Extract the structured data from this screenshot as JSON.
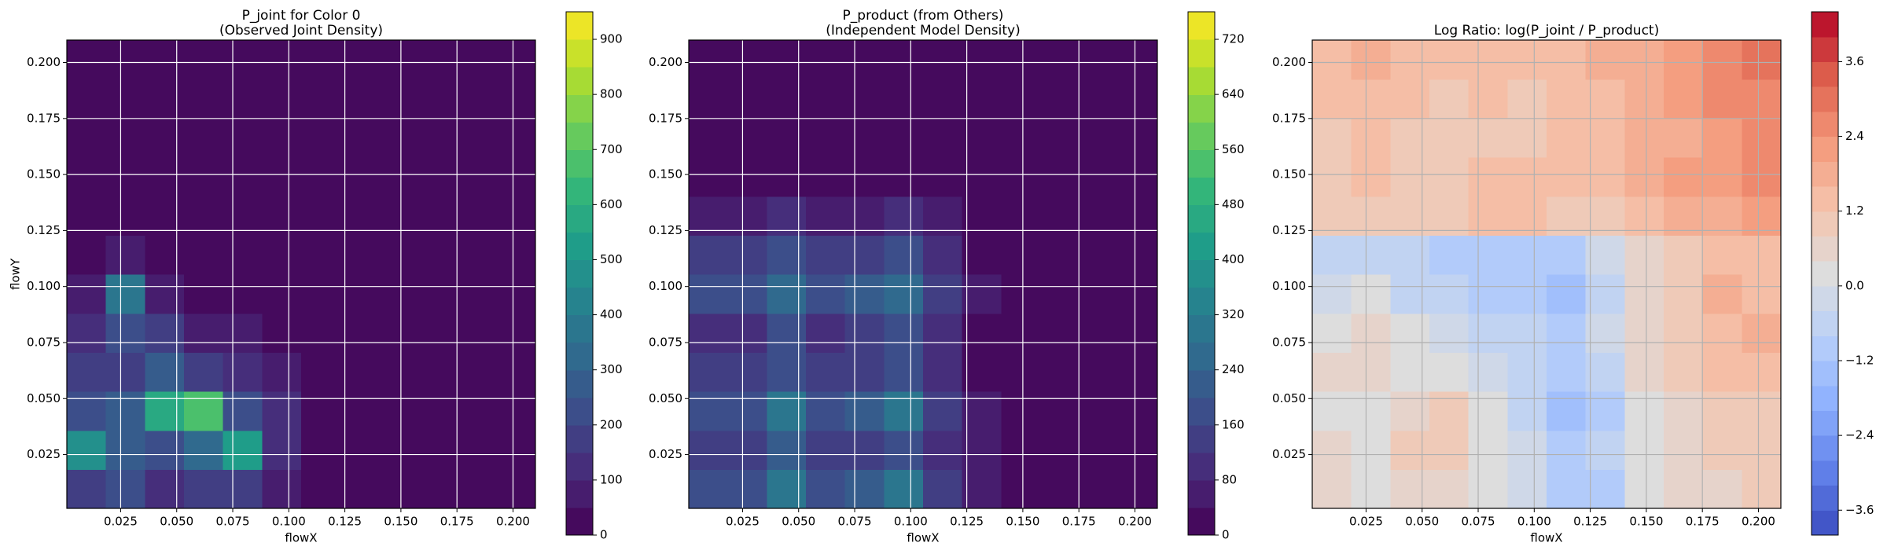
{
  "chart_data": [
    {
      "type": "contour",
      "title": [
        "P_joint for Color 0",
        "(Observed Joint Density)"
      ],
      "xlabel": "flowX",
      "ylabel": "flowY",
      "xlim": [
        0.001,
        0.21
      ],
      "ylim": [
        0.001,
        0.21
      ],
      "xticks": [
        0.025,
        {
          "value": 0.05,
          "label": "0.050"
        },
        0.075,
        {
          "value": 0.1,
          "label": "0.100"
        },
        0.125,
        {
          "value": 0.15,
          "label": "0.150"
        },
        0.175,
        {
          "value": 0.2,
          "label": "0.200"
        }
      ],
      "yticks": [
        0.025,
        {
          "value": 0.05,
          "label": "0.050"
        },
        0.075,
        {
          "value": 0.1,
          "label": "0.100"
        },
        0.125,
        {
          "value": 0.15,
          "label": "0.150"
        },
        0.175,
        {
          "value": 0.2,
          "label": "0.200"
        }
      ],
      "grid": true,
      "grid_color": "#ffffff",
      "colormap": "viridis",
      "zlim": [
        0,
        950
      ],
      "levels": 19,
      "zticks": [
        0,
        100,
        200,
        300,
        400,
        500,
        600,
        700,
        800,
        900
      ],
      "z": [
        [
          150,
          200,
          120,
          150,
          180,
          80,
          0,
          0,
          0,
          0,
          0,
          0
        ],
        [
          450,
          250,
          200,
          300,
          500,
          120,
          0,
          0,
          0,
          0,
          0,
          0
        ],
        [
          200,
          250,
          550,
          650,
          200,
          100,
          0,
          0,
          0,
          0,
          0,
          0
        ],
        [
          150,
          150,
          250,
          150,
          100,
          80,
          0,
          0,
          0,
          0,
          0,
          0
        ],
        [
          100,
          200,
          150,
          80,
          50,
          30,
          0,
          0,
          0,
          0,
          0,
          0
        ],
        [
          60,
          350,
          80,
          40,
          20,
          10,
          0,
          0,
          0,
          0,
          0,
          0
        ],
        [
          20,
          60,
          30,
          10,
          0,
          0,
          0,
          0,
          0,
          0,
          0,
          0
        ],
        [
          0,
          30,
          20,
          0,
          0,
          20,
          0,
          0,
          0,
          0,
          0,
          0
        ],
        [
          0,
          0,
          30,
          0,
          0,
          0,
          0,
          0,
          0,
          0,
          0,
          0
        ],
        [
          0,
          0,
          0,
          0,
          0,
          0,
          0,
          0,
          0,
          0,
          0,
          0
        ],
        [
          0,
          0,
          0,
          0,
          0,
          0,
          0,
          0,
          0,
          0,
          0,
          0
        ],
        [
          0,
          0,
          0,
          0,
          0,
          0,
          0,
          0,
          0,
          0,
          0,
          0
        ]
      ]
    },
    {
      "type": "contour",
      "title": [
        "P_product (from Others)",
        "(Independent Model Density)"
      ],
      "xlabel": "flowX",
      "xlim": [
        0.001,
        0.21
      ],
      "ylim": [
        0.001,
        0.21
      ],
      "xticks": [
        0.025,
        {
          "value": 0.05,
          "label": "0.050"
        },
        0.075,
        {
          "value": 0.1,
          "label": "0.100"
        },
        0.125,
        {
          "value": 0.15,
          "label": "0.150"
        },
        0.175,
        {
          "value": 0.2,
          "label": "0.200"
        }
      ],
      "yticks": [
        0.025,
        {
          "value": 0.05,
          "label": "0.050"
        },
        0.075,
        {
          "value": 0.1,
          "label": "0.100"
        },
        0.125,
        {
          "value": 0.15,
          "label": "0.150"
        },
        0.175,
        {
          "value": 0.2,
          "label": "0.200"
        }
      ],
      "grid": true,
      "grid_color": "#ffffff",
      "colormap": "viridis",
      "zlim": [
        0,
        760
      ],
      "levels": 19,
      "zticks": [
        0,
        80,
        160,
        240,
        320,
        400,
        480,
        560,
        640,
        720
      ],
      "z": [
        [
          192,
          192,
          307,
          192,
          230,
          288,
          154,
          58,
          19,
          0,
          0,
          0
        ],
        [
          132,
          132,
          211,
          132,
          158,
          198,
          106,
          40,
          13,
          0,
          0,
          0
        ],
        [
          192,
          192,
          307,
          192,
          230,
          288,
          154,
          58,
          19,
          0,
          0,
          0
        ],
        [
          120,
          120,
          192,
          120,
          144,
          180,
          96,
          36,
          12,
          0,
          0,
          0
        ],
        [
          108,
          108,
          173,
          108,
          130,
          162,
          86,
          32,
          11,
          0,
          0,
          0
        ],
        [
          168,
          168,
          269,
          168,
          202,
          252,
          134,
          50,
          17,
          0,
          0,
          0
        ],
        [
          120,
          120,
          192,
          120,
          144,
          180,
          96,
          36,
          12,
          0,
          0,
          0
        ],
        [
          60,
          60,
          96,
          60,
          72,
          90,
          48,
          18,
          6,
          0,
          0,
          0
        ],
        [
          12,
          12,
          19,
          12,
          14,
          18,
          10,
          4,
          1,
          0,
          0,
          0
        ],
        [
          0,
          0,
          0,
          0,
          0,
          0,
          0,
          0,
          0,
          0,
          0,
          0
        ],
        [
          0,
          0,
          0,
          0,
          0,
          0,
          0,
          0,
          0,
          0,
          0,
          0
        ],
        [
          0,
          0,
          0,
          0,
          0,
          0,
          0,
          0,
          0,
          0,
          0,
          0
        ]
      ]
    },
    {
      "type": "contour",
      "title": [
        "Log Ratio: log(P_joint / P_product)"
      ],
      "xlabel": "flowX",
      "xlim": [
        0.001,
        0.21
      ],
      "ylim": [
        0.001,
        0.21
      ],
      "xticks": [
        0.025,
        {
          "value": 0.05,
          "label": "0.050"
        },
        0.075,
        {
          "value": 0.1,
          "label": "0.100"
        },
        0.125,
        {
          "value": 0.15,
          "label": "0.150"
        },
        0.175,
        {
          "value": 0.2,
          "label": "0.200"
        }
      ],
      "yticks": [
        0.025,
        {
          "value": 0.05,
          "label": "0.050"
        },
        0.075,
        {
          "value": 0.1,
          "label": "0.100"
        },
        0.125,
        {
          "value": 0.15,
          "label": "0.150"
        },
        0.175,
        {
          "value": 0.2,
          "label": "0.200"
        }
      ],
      "grid": true,
      "grid_color": "#b0b0b0",
      "colormap": "coolwarm",
      "zlim": [
        -4.0,
        4.4
      ],
      "levels": 21,
      "zticks": [
        {
          "value": -3.6,
          "label": "−3.6"
        },
        {
          "value": -2.4,
          "label": "−2.4"
        },
        {
          "value": -1.2,
          "label": "−1.2"
        },
        {
          "value": 0,
          "label": "0.0"
        },
        1.2,
        2.4,
        3.6
      ],
      "z": [
        [
          0.6,
          0.3,
          0.4,
          0.6,
          0.2,
          -0.4,
          -1.2,
          -1.0,
          0.0,
          0.4,
          0.6,
          0.8
        ],
        [
          0.4,
          0.2,
          0.8,
          1.0,
          0.3,
          -0.3,
          -1.0,
          -0.8,
          0.2,
          0.6,
          0.8,
          1.0
        ],
        [
          0.2,
          0.0,
          0.6,
          0.8,
          0.0,
          -0.6,
          -1.4,
          -1.0,
          0.0,
          0.4,
          0.8,
          1.0
        ],
        [
          0.4,
          0.6,
          0.2,
          0.0,
          -0.4,
          -0.8,
          -1.2,
          -0.6,
          0.4,
          0.8,
          1.2,
          1.4
        ],
        [
          0.2,
          0.4,
          0.0,
          -0.2,
          -0.6,
          -0.8,
          -1.0,
          -0.4,
          0.6,
          1.0,
          1.4,
          1.6
        ],
        [
          -0.4,
          0.0,
          -0.6,
          -0.8,
          -1.0,
          -1.2,
          -1.4,
          -0.6,
          0.6,
          1.0,
          1.6,
          1.4
        ],
        [
          -0.6,
          -0.8,
          -0.8,
          -1.0,
          -1.2,
          -1.0,
          -1.2,
          -0.4,
          0.4,
          0.8,
          1.2,
          1.2
        ],
        [
          0.8,
          1.0,
          0.8,
          1.0,
          1.2,
          1.2,
          1.0,
          1.0,
          1.4,
          1.6,
          1.8,
          2.0
        ],
        [
          1.0,
          1.4,
          1.0,
          1.0,
          1.2,
          1.2,
          1.4,
          1.4,
          1.6,
          2.0,
          2.2,
          2.4
        ],
        [
          1.0,
          1.2,
          1.0,
          0.8,
          1.0,
          1.0,
          1.2,
          1.2,
          1.6,
          1.8,
          2.2,
          2.4
        ],
        [
          1.2,
          1.4,
          1.2,
          1.0,
          1.2,
          1.0,
          1.2,
          1.4,
          1.6,
          2.0,
          2.4,
          2.8
        ],
        [
          1.4,
          1.6,
          1.4,
          1.2,
          1.2,
          1.2,
          1.4,
          1.6,
          1.8,
          2.2,
          2.6,
          3.0
        ]
      ]
    }
  ]
}
